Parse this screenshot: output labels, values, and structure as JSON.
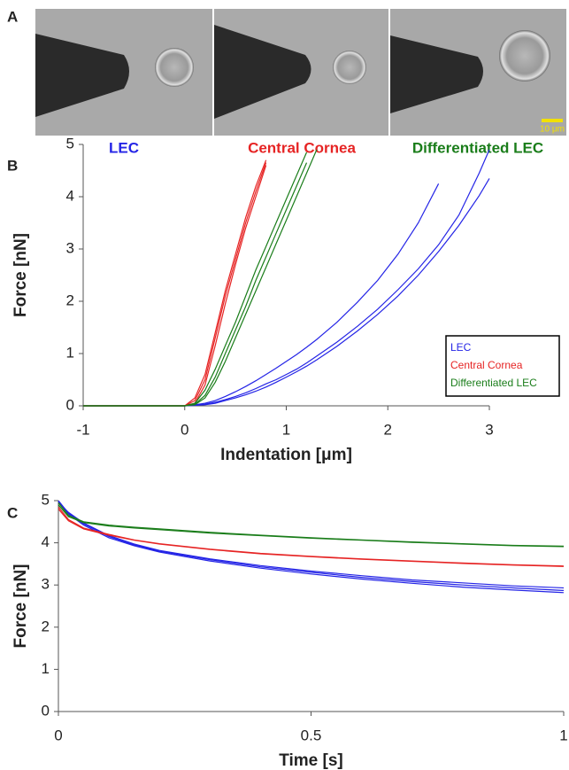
{
  "panel_a": {
    "label": "A",
    "captions": [
      "LEC",
      "Central Cornea",
      "Differentiated LEC"
    ],
    "scale_bar": "10 μm"
  },
  "chart_data": [
    {
      "type": "line",
      "panel_label": "B",
      "x_label": "Indentation [μm]",
      "y_label": "Force [nN]",
      "xlim": [
        -1,
        3
      ],
      "xticks": [
        -1,
        0,
        1,
        2,
        3
      ],
      "ylim": [
        0,
        5
      ],
      "yticks": [
        0,
        1,
        2,
        3,
        4,
        5
      ],
      "legend": "lower right",
      "x": [
        -1,
        -0.5,
        0,
        0.1,
        0.2,
        0.3,
        0.4,
        0.5,
        0.6,
        0.7,
        0.8,
        0.9,
        1,
        1.1,
        1.2,
        1.3,
        1.5,
        1.7,
        1.9,
        2.1,
        2.3,
        2.5,
        2.7,
        2.9,
        3
      ],
      "series": [
        {
          "name": "LEC",
          "color": "#2424e6",
          "curves": [
            [
              0,
              0,
              0,
              0.02,
              0.05,
              0.1,
              0.18,
              0.27,
              0.37,
              0.48,
              0.6,
              0.72,
              0.85,
              0.98,
              1.12,
              1.27,
              1.6,
              1.98,
              2.4,
              2.9,
              3.5,
              4.25,
              null,
              null,
              null
            ],
            [
              0,
              0,
              0,
              0.01,
              0.03,
              0.07,
              0.12,
              0.18,
              0.25,
              0.33,
              0.42,
              0.5,
              0.6,
              0.7,
              0.82,
              0.95,
              1.22,
              1.52,
              1.85,
              2.22,
              2.62,
              3.08,
              3.65,
              4.45,
              4.9
            ],
            [
              0,
              0,
              0,
              0.01,
              0.02,
              0.05,
              0.1,
              0.15,
              0.21,
              0.28,
              0.36,
              0.45,
              0.55,
              0.65,
              0.76,
              0.88,
              1.14,
              1.43,
              1.75,
              2.1,
              2.5,
              2.95,
              3.45,
              4.02,
              4.35
            ]
          ]
        },
        {
          "name": "Central Cornea",
          "color": "#e62424",
          "curves": [
            [
              0,
              0,
              0,
              0.15,
              0.6,
              1.4,
              2.2,
              2.9,
              3.6,
              4.2,
              4.7,
              null,
              null,
              null,
              null,
              null,
              null,
              null,
              null,
              null,
              null,
              null,
              null,
              null,
              null
            ],
            [
              0,
              0,
              0,
              0.1,
              0.5,
              1.3,
              2.1,
              2.8,
              3.5,
              4.1,
              4.65,
              null,
              null,
              null,
              null,
              null,
              null,
              null,
              null,
              null,
              null,
              null,
              null,
              null,
              null
            ],
            [
              0,
              0,
              0,
              0.05,
              0.4,
              1.15,
              1.95,
              2.7,
              3.4,
              4.0,
              4.6,
              null,
              null,
              null,
              null,
              null,
              null,
              null,
              null,
              null,
              null,
              null,
              null,
              null,
              null
            ]
          ]
        },
        {
          "name": "Differentiated LEC",
          "color": "#1a7d1a",
          "curves": [
            [
              0,
              0,
              0,
              0.05,
              0.3,
              0.7,
              1.15,
              1.6,
              2.1,
              2.6,
              3.05,
              3.5,
              3.95,
              4.4,
              4.85,
              null,
              null,
              null,
              null,
              null,
              null,
              null,
              null,
              null,
              null
            ],
            [
              0,
              0,
              0,
              0.03,
              0.2,
              0.55,
              1.0,
              1.45,
              1.9,
              2.4,
              2.85,
              3.3,
              3.75,
              4.2,
              4.65,
              null,
              null,
              null,
              null,
              null,
              null,
              null,
              null,
              null,
              null
            ],
            [
              0,
              0,
              0,
              0.02,
              0.15,
              0.45,
              0.85,
              1.3,
              1.75,
              2.2,
              2.65,
              3.1,
              3.55,
              4.0,
              4.45,
              4.9,
              null,
              null,
              null,
              null,
              null,
              null,
              null,
              null,
              null
            ]
          ]
        }
      ]
    },
    {
      "type": "line",
      "panel_label": "C",
      "x_label": "Time [s]",
      "y_label": "Force [nN]",
      "xlim": [
        0,
        1
      ],
      "xticks": [
        0,
        0.5,
        1
      ],
      "ylim": [
        0,
        5
      ],
      "yticks": [
        0,
        1,
        2,
        3,
        4,
        5
      ],
      "x": [
        0,
        0.02,
        0.05,
        0.1,
        0.15,
        0.2,
        0.3,
        0.4,
        0.5,
        0.6,
        0.7,
        0.8,
        0.9,
        1
      ],
      "series": [
        {
          "color": "#2424e6",
          "curves": [
            [
              5,
              4.7,
              4.45,
              4.15,
              3.95,
              3.8,
              3.6,
              3.43,
              3.3,
              3.18,
              3.08,
              3,
              2.93,
              2.87
            ],
            [
              4.98,
              4.68,
              4.42,
              4.12,
              3.93,
              3.78,
              3.57,
              3.4,
              3.26,
              3.14,
              3.04,
              2.95,
              2.88,
              2.82
            ],
            [
              4.96,
              4.72,
              4.47,
              4.17,
              3.97,
              3.82,
              3.62,
              3.46,
              3.33,
              3.22,
              3.12,
              3.05,
              2.98,
              2.93
            ]
          ]
        },
        {
          "color": "#e62424",
          "curves": [
            [
              4.85,
              4.55,
              4.35,
              4.2,
              4.07,
              3.98,
              3.85,
              3.75,
              3.68,
              3.62,
              3.57,
              3.52,
              3.48,
              3.45
            ],
            [
              4.8,
              4.52,
              4.33,
              4.18,
              4.06,
              3.97,
              3.84,
              3.74,
              3.67,
              3.61,
              3.56,
              3.51,
              3.47,
              3.44
            ]
          ]
        },
        {
          "color": "#1a7d1a",
          "curves": [
            [
              4.95,
              4.65,
              4.5,
              4.42,
              4.37,
              4.33,
              4.25,
              4.18,
              4.12,
              4.07,
              4.02,
              3.98,
              3.94,
              3.92
            ],
            [
              4.9,
              4.62,
              4.48,
              4.4,
              4.35,
              4.31,
              4.23,
              4.17,
              4.11,
              4.06,
              4.01,
              3.97,
              3.93,
              3.91
            ]
          ]
        }
      ]
    }
  ]
}
